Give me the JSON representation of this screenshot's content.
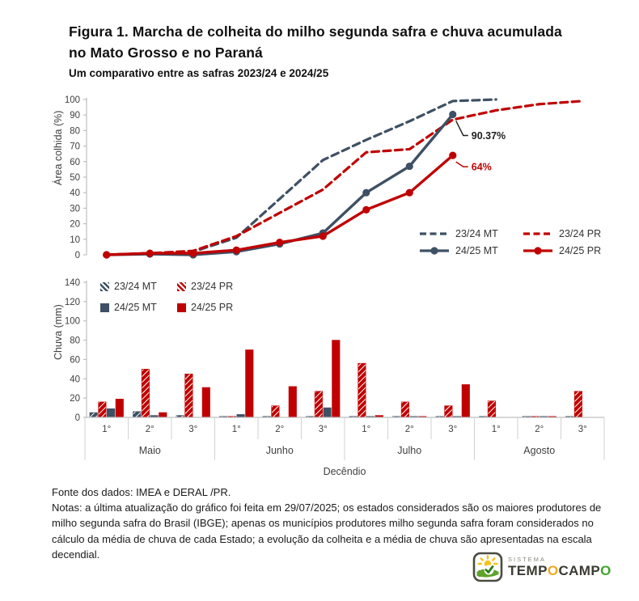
{
  "header": {
    "title_line1": "Figura 1. Marcha de colheita do milho segunda safra e chuva acumulada",
    "title_line2": "no Mato Grosso e no Paraná",
    "subtitle": "Um comparativo entre as safras 2023/24 e 2024/25"
  },
  "colors": {
    "mt": "#3E5064",
    "pr": "#C00000",
    "axis_text": "#404040",
    "axis_line": "#BFBFBF"
  },
  "chart_data": [
    {
      "type": "line",
      "title": "",
      "ylabel": "Área colhida (%)",
      "ylim": [
        0,
        100
      ],
      "ytick_step": 10,
      "x_categories": [
        "Maio 1°",
        "Maio 2°",
        "Maio 3°",
        "Junho 1°",
        "Junho 2°",
        "Junho 3°",
        "Julho 1°",
        "Julho 2°",
        "Julho 3°",
        "Agosto 1°",
        "Agosto 2°",
        "Agosto 3°"
      ],
      "series": [
        {
          "name": "23/24 MT",
          "color_key": "mt",
          "style": "dashed",
          "values": [
            0,
            1,
            2,
            11,
            36,
            61,
            74,
            86,
            99,
            100,
            null,
            null
          ]
        },
        {
          "name": "23/24 PR",
          "color_key": "pr",
          "style": "dashed",
          "values": [
            0,
            1,
            2.5,
            12,
            27,
            42,
            66,
            68,
            87,
            93,
            97,
            99
          ]
        },
        {
          "name": "24/25 MT",
          "color_key": "mt",
          "style": "solid-marker",
          "values": [
            0,
            0.5,
            0,
            2,
            7,
            14,
            40,
            57,
            90.37,
            null,
            null,
            null
          ]
        },
        {
          "name": "24/25 PR",
          "color_key": "pr",
          "style": "solid-marker",
          "values": [
            0,
            1,
            1,
            3,
            8,
            12,
            29,
            40,
            64,
            null,
            null,
            null
          ]
        }
      ],
      "annotations": [
        {
          "text": "90.37%",
          "series": "24/25 MT",
          "point": "Julho 3°",
          "color": "#1f1f1f"
        },
        {
          "text": "64%",
          "series": "24/25 PR",
          "point": "Julho 3°",
          "color": "#C00000"
        }
      ],
      "legend_position": "bottom-right",
      "grid": false
    },
    {
      "type": "bar",
      "title": "",
      "ylabel": "Chuva (mm)",
      "xlabel": "Decêndio",
      "ylim": [
        0,
        140
      ],
      "ytick_step": 20,
      "decendio_labels": [
        "1°",
        "2°",
        "3°",
        "1°",
        "2°",
        "3°",
        "1°",
        "2°",
        "3°",
        "1°",
        "2°",
        "3°"
      ],
      "month_labels": [
        "Maio",
        "Junho",
        "Julho",
        "Agosto"
      ],
      "series": [
        {
          "name": "23/24 MT",
          "color_key": "mt",
          "fill": "hatched",
          "values": [
            5,
            6,
            2,
            1,
            1,
            1,
            1,
            0.5,
            0.5,
            1,
            1,
            1
          ]
        },
        {
          "name": "23/24 PR",
          "color_key": "pr",
          "fill": "hatched",
          "values": [
            16,
            50,
            45,
            1,
            12,
            27,
            56,
            16,
            12,
            17,
            1,
            27
          ]
        },
        {
          "name": "24/25 MT",
          "color_key": "mt",
          "fill": "solid",
          "values": [
            9,
            2,
            0,
            3,
            0,
            10,
            0.5,
            0.5,
            0.5,
            0,
            0.5,
            0
          ]
        },
        {
          "name": "24/25 PR",
          "color_key": "pr",
          "fill": "solid",
          "values": [
            19,
            5,
            31,
            70,
            32,
            80,
            2,
            1,
            34,
            0,
            0.5,
            0
          ]
        }
      ],
      "legend_position": "top-left",
      "grid": false
    }
  ],
  "footer": {
    "fonte": "Fonte dos dados: IMEA e DERAL /PR.",
    "notas": "Notas: a última atualização do gráfico foi feita em 29/07/2025; os estados considerados são os maiores produtores de milho segunda safra do Brasil (IBGE); apenas os municípios produtores milho segunda safra foram considerados no cálculo da média de chuva de cada Estado; a evolução da colheita e a média de chuva são apresentadas na escala decendial."
  },
  "logo": {
    "system_label": "SISTEMA",
    "brand": [
      {
        "text": "TEMP",
        "color": "#3b3b32"
      },
      {
        "text": "O",
        "color": "#F0A81C"
      },
      {
        "text": "CAMP",
        "color": "#3b3b32"
      },
      {
        "text": "O",
        "color": "#3DA62B"
      }
    ]
  }
}
